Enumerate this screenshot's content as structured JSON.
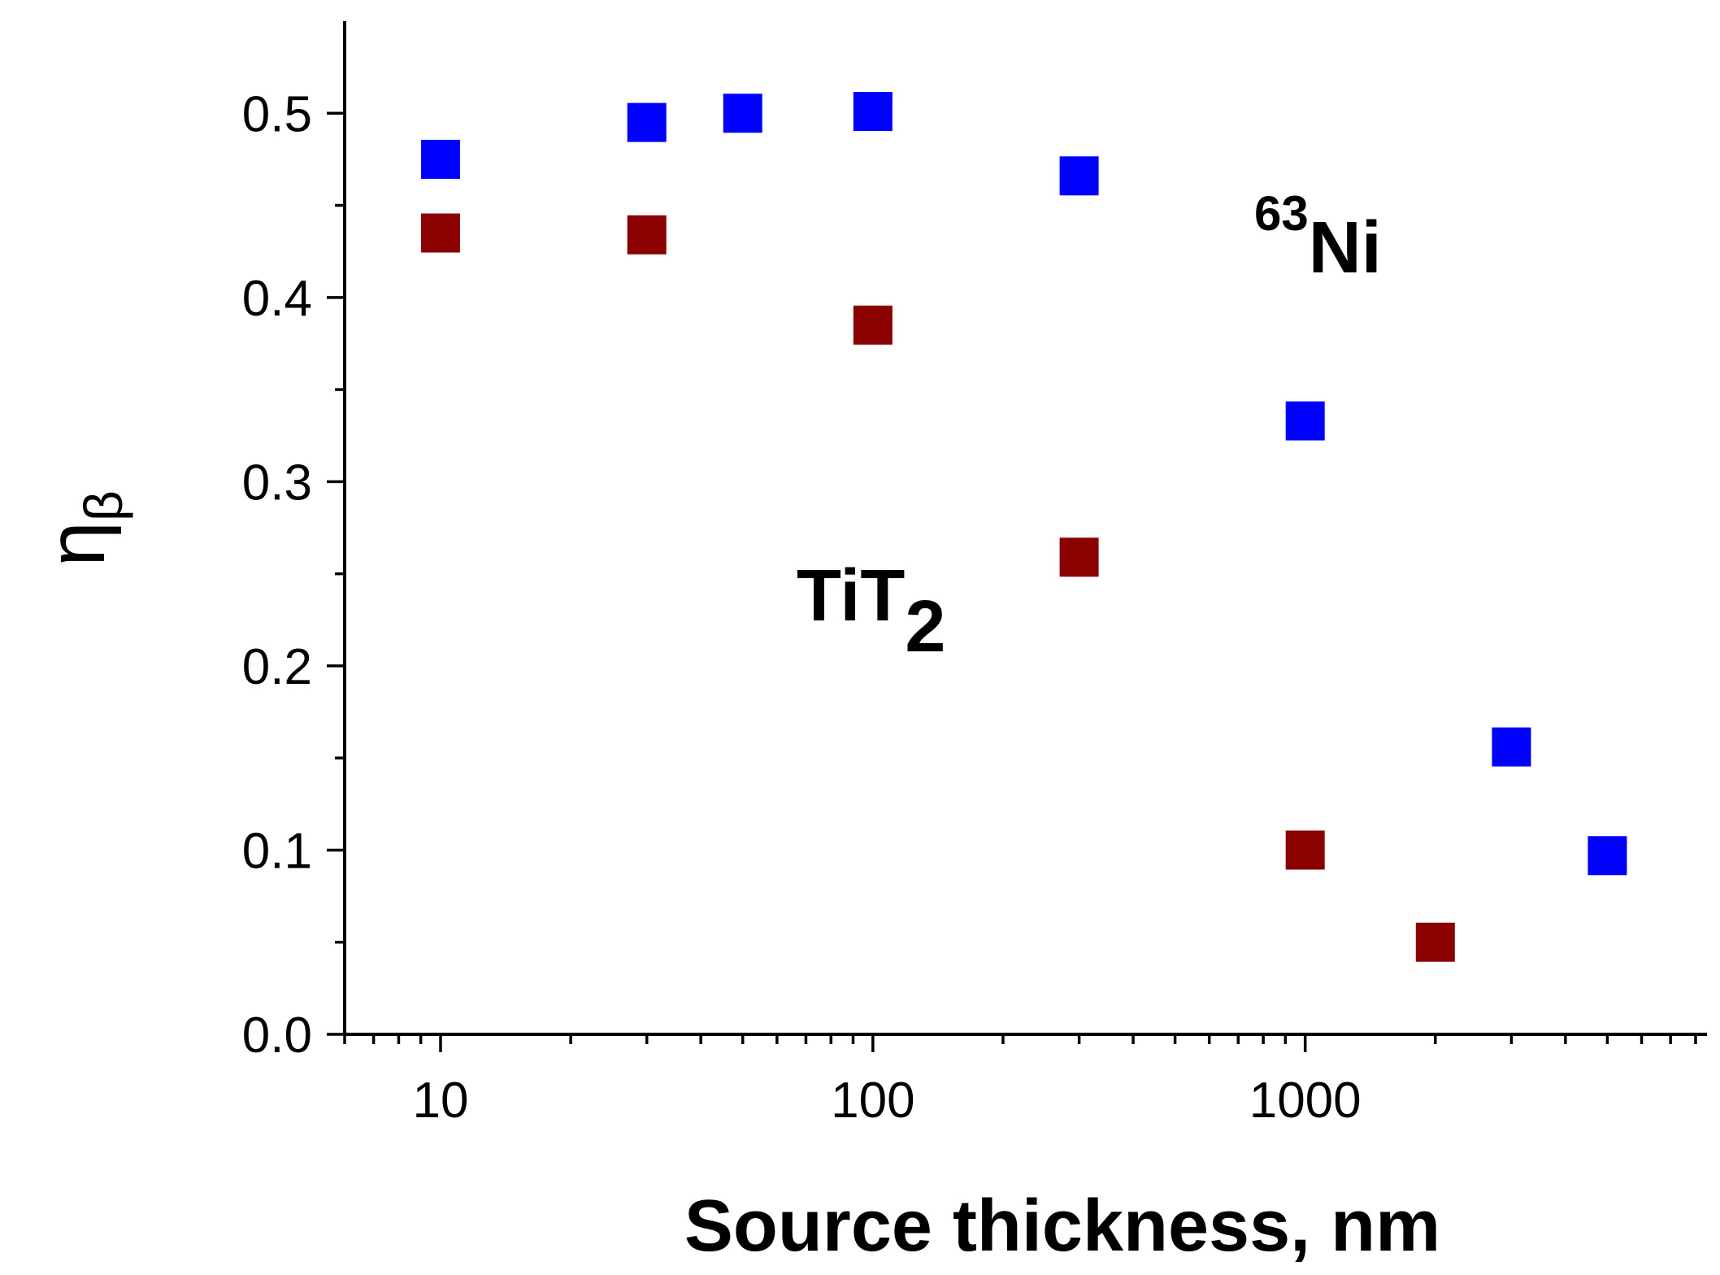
{
  "chart_data": {
    "type": "scatter",
    "title": "",
    "xlabel": "Source thickness, nm",
    "ylabel": {
      "main": "η",
      "sub": "β"
    },
    "xscale": "log",
    "xlim": [
      6,
      8500
    ],
    "ylim": [
      0.0,
      0.55
    ],
    "x_ticks": [
      10,
      100,
      1000
    ],
    "x_tick_labels": [
      "10",
      "100",
      "1000"
    ],
    "y_ticks": [
      0.0,
      0.1,
      0.2,
      0.3,
      0.4,
      0.5
    ],
    "y_tick_labels": [
      "0.0",
      "0.1",
      "0.2",
      "0.3",
      "0.4",
      "0.5"
    ],
    "grid": false,
    "series": [
      {
        "name": "63Ni",
        "color": "#0000ff",
        "marker": "square",
        "x": [
          10,
          30,
          50,
          100,
          300,
          1000,
          3000,
          5000
        ],
        "y": [
          0.475,
          0.495,
          0.5,
          0.501,
          0.466,
          0.333,
          0.156,
          0.097
        ]
      },
      {
        "name": "TiT2",
        "color": "#8b0000",
        "marker": "square",
        "x": [
          10,
          30,
          100,
          300,
          1000,
          2000
        ],
        "y": [
          0.435,
          0.434,
          0.385,
          0.259,
          0.1,
          0.05
        ]
      }
    ],
    "annotations": {
      "ni63": {
        "sup": "63",
        "main": "Ni"
      },
      "tit2": {
        "main": "TiT",
        "sub": "2"
      }
    }
  }
}
